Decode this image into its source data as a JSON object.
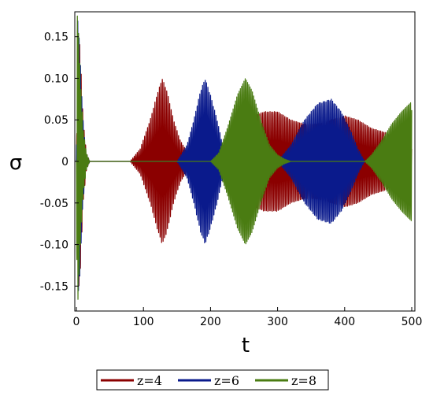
{
  "chart_data": {
    "type": "line",
    "title": "",
    "xlabel": "t",
    "ylabel": "σ",
    "xlim": [
      0,
      500
    ],
    "ylim": [
      -0.18,
      0.18
    ],
    "x_ticks": [
      0,
      100,
      200,
      300,
      400,
      500
    ],
    "x_tick_labels": [
      "0",
      "100",
      "200",
      "300",
      "400",
      "500"
    ],
    "y_ticks": [
      0.15,
      0.1,
      0.05,
      0,
      -0.05,
      -0.1,
      -0.15
    ],
    "y_tick_labels": [
      "0.15",
      "0.10",
      "0.05",
      "0",
      "-0.05",
      "-0.10",
      "-0.15"
    ],
    "grid": false,
    "legend_position": "bottom",
    "series": [
      {
        "name": "z=4",
        "color": "#8b0000",
        "oscillation_period": 2.2,
        "envelope": {
          "x": [
            0,
            3,
            6,
            10,
            15,
            20,
            80,
            95,
            110,
            120,
            128,
            135,
            145,
            155,
            165,
            180,
            200,
            220,
            235,
            250,
            265,
            280,
            300,
            320,
            340,
            360,
            380,
            400,
            420,
            440,
            460,
            480,
            500
          ],
          "amplitude": [
            0.0,
            0.16,
            0.13,
            0.05,
            0.01,
            0.0,
            0.0,
            0.015,
            0.05,
            0.08,
            0.1,
            0.085,
            0.05,
            0.025,
            0.012,
            0.01,
            0.015,
            0.02,
            0.035,
            0.05,
            0.055,
            0.06,
            0.06,
            0.05,
            0.045,
            0.045,
            0.05,
            0.055,
            0.05,
            0.04,
            0.035,
            0.025,
            0.015
          ]
        }
      },
      {
        "name": "z=6",
        "color": "#0a1a8c",
        "oscillation_period": 2.0,
        "envelope": {
          "x": [
            0,
            2,
            5,
            9,
            14,
            20,
            150,
            165,
            175,
            185,
            192,
            200,
            210,
            218,
            225,
            300,
            320,
            340,
            360,
            380,
            395,
            410,
            420,
            430,
            500
          ],
          "amplitude": [
            0.0,
            0.17,
            0.14,
            0.06,
            0.01,
            0.0,
            0.0,
            0.02,
            0.05,
            0.085,
            0.1,
            0.08,
            0.05,
            0.02,
            0.0,
            0.0,
            0.02,
            0.05,
            0.07,
            0.075,
            0.06,
            0.035,
            0.015,
            0.0,
            0.0
          ]
        }
      },
      {
        "name": "z=8",
        "color": "#4a7c12",
        "oscillation_period": 1.8,
        "envelope": {
          "x": [
            0,
            1,
            3,
            6,
            10,
            15,
            20,
            200,
            212,
            225,
            240,
            252,
            262,
            275,
            288,
            300,
            310,
            320,
            430,
            440,
            455,
            470,
            485,
            500
          ],
          "amplitude": [
            0.0,
            0.18,
            0.16,
            0.1,
            0.04,
            0.01,
            0.0,
            0.0,
            0.01,
            0.04,
            0.08,
            0.1,
            0.085,
            0.05,
            0.02,
            0.008,
            0.003,
            0.0,
            0.0,
            0.008,
            0.025,
            0.045,
            0.06,
            0.072
          ]
        }
      }
    ]
  }
}
